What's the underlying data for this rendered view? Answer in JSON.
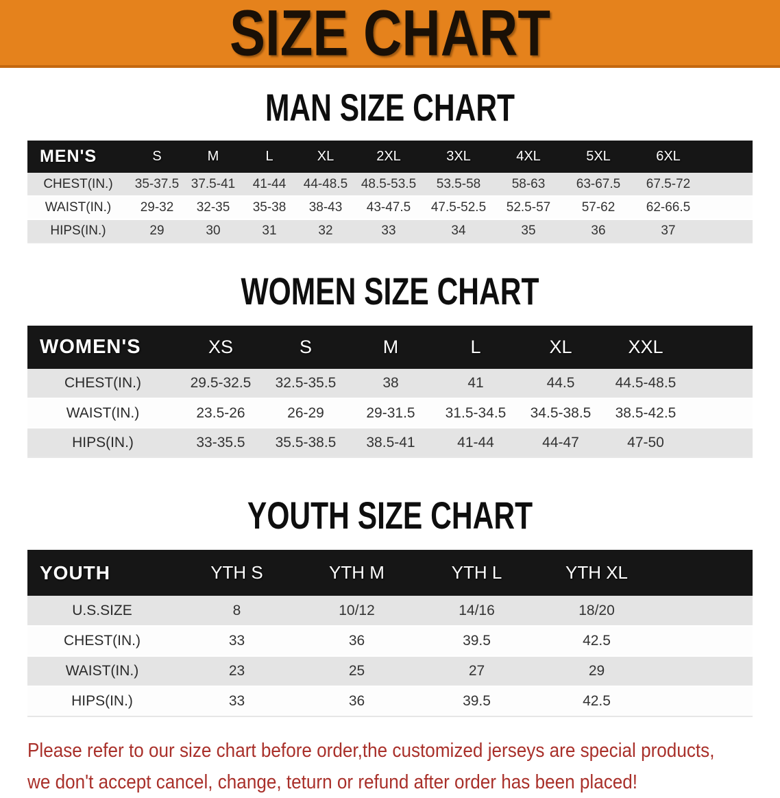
{
  "banner": {
    "title": "SIZE CHART"
  },
  "colors": {
    "banner_orange": "#E5821C",
    "table_header_black": "#161616",
    "row_alt_gray": "#E4E4E4",
    "note_red": "#A9302A"
  },
  "sections": [
    {
      "heading": "MAN SIZE CHART",
      "table": {
        "header": [
          "MEN'S",
          "S",
          "M",
          "L",
          "XL",
          "2XL",
          "3XL",
          "4XL",
          "5XL",
          "6XL"
        ],
        "rows": [
          {
            "label": "CHEST(IN.)",
            "values": [
              "35-37.5",
              "37.5-41",
              "41-44",
              "44-48.5",
              "48.5-53.5",
              "53.5-58",
              "58-63",
              "63-67.5",
              "67.5-72"
            ]
          },
          {
            "label": "WAIST(IN.)",
            "values": [
              "29-32",
              "32-35",
              "35-38",
              "38-43",
              "43-47.5",
              "47.5-52.5",
              "52.5-57",
              "57-62",
              "62-66.5"
            ]
          },
          {
            "label": "HIPS(IN.)",
            "values": [
              "29",
              "30",
              "31",
              "32",
              "33",
              "34",
              "35",
              "36",
              "37"
            ]
          }
        ]
      }
    },
    {
      "heading": "WOMEN SIZE CHART",
      "table": {
        "header": [
          "WOMEN'S",
          "XS",
          "S",
          "M",
          "L",
          "XL",
          "XXL"
        ],
        "rows": [
          {
            "label": "CHEST(IN.)",
            "values": [
              "29.5-32.5",
              "32.5-35.5",
              "38",
              "41",
              "44.5",
              "44.5-48.5"
            ]
          },
          {
            "label": "WAIST(IN.)",
            "values": [
              "23.5-26",
              "26-29",
              "29-31.5",
              "31.5-34.5",
              "34.5-38.5",
              "38.5-42.5"
            ]
          },
          {
            "label": "HIPS(IN.)",
            "values": [
              "33-35.5",
              "35.5-38.5",
              "38.5-41",
              "41-44",
              "44-47",
              "47-50"
            ]
          }
        ]
      }
    },
    {
      "heading": "YOUTH SIZE CHART",
      "table": {
        "header": [
          "YOUTH",
          "YTH S",
          "YTH M",
          "YTH L",
          "YTH XL"
        ],
        "rows": [
          {
            "label": "U.S.SIZE",
            "values": [
              "8",
              "10/12",
              "14/16",
              "18/20"
            ]
          },
          {
            "label": "CHEST(IN.)",
            "values": [
              "33",
              "36",
              "39.5",
              "42.5"
            ]
          },
          {
            "label": "WAIST(IN.)",
            "values": [
              "23",
              "25",
              "27",
              "29"
            ]
          },
          {
            "label": "HIPS(IN.)",
            "values": [
              "33",
              "36",
              "39.5",
              "42.5"
            ]
          }
        ]
      }
    }
  ],
  "note": {
    "line1": "Please refer to our size chart before order,the customized jerseys are special products,",
    "line2": "we don't accept cancel, change, teturn or refund after order has been placed!"
  }
}
